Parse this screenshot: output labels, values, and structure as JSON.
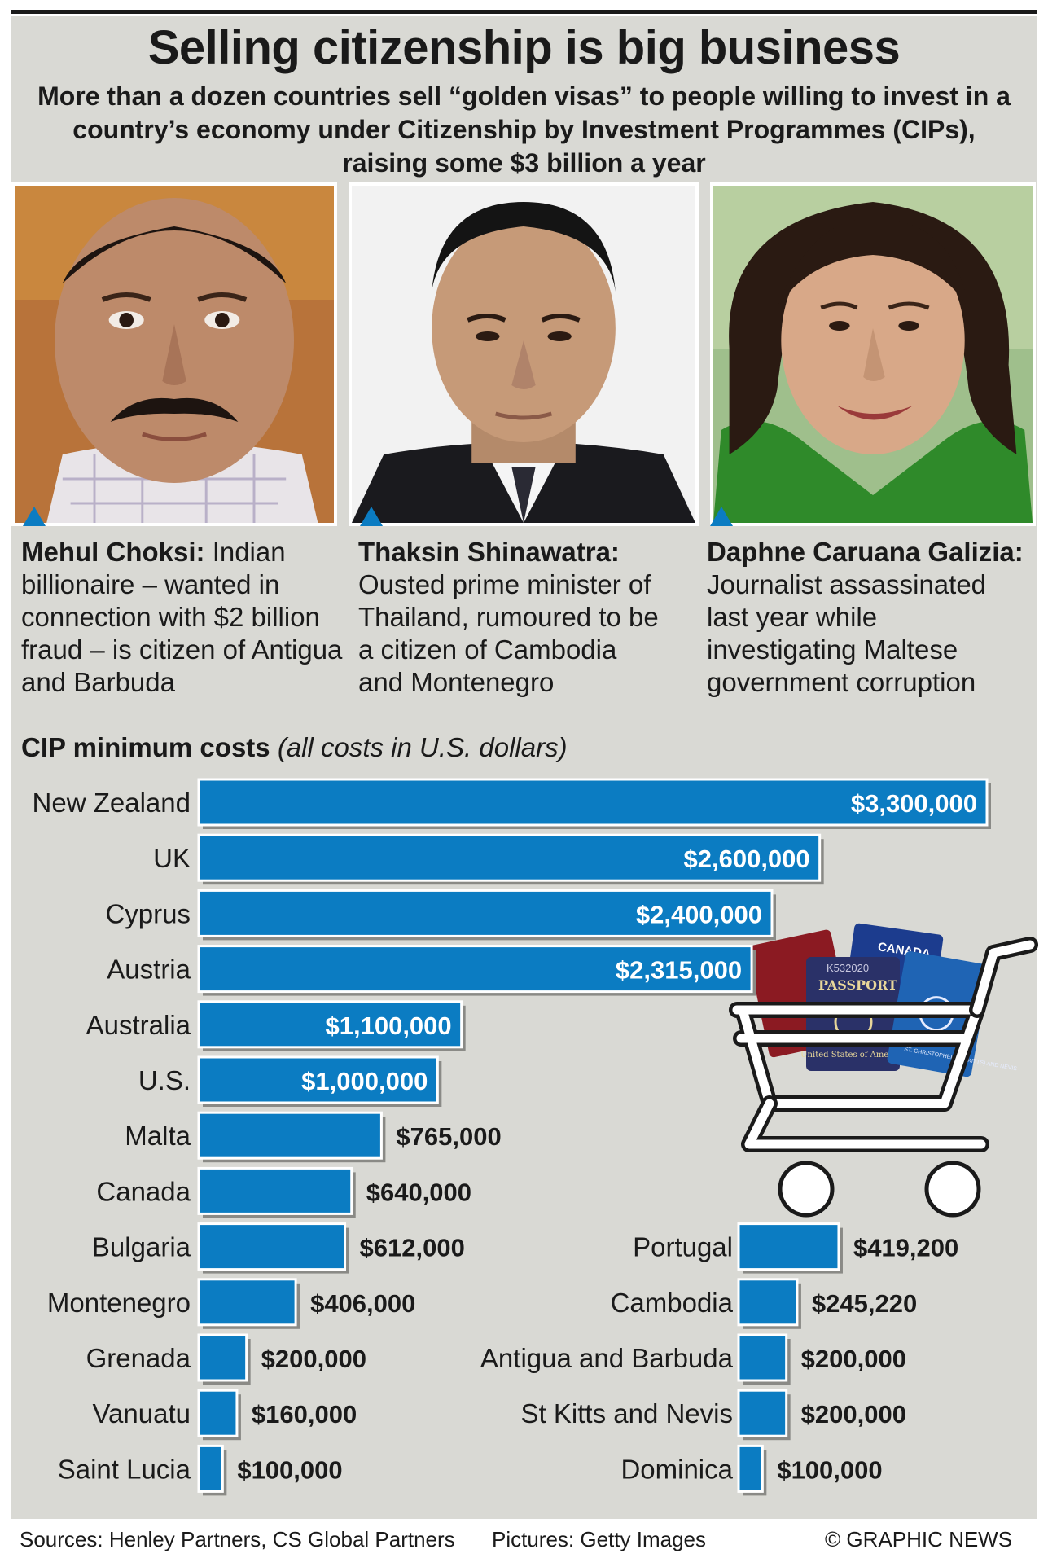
{
  "title": "Selling citizenship is big business",
  "subtitle": "More than a dozen countries sell “golden visas” to people willing to invest in a country’s economy under Citizenship by Investment Programmes (CIPs), raising some $3 billion a year",
  "profiles": [
    {
      "name": "Mehul Choksi:",
      "text": "Indian billionaire – wanted in connection with $2 billion fraud – is citizen of Antigua and Barbuda"
    },
    {
      "name": "Thaksin Shinawatra:",
      "text": "Ousted prime minister of Thailand, rumoured to be a citizen of Cambodia and Montenegro"
    },
    {
      "name": "Daphne Caruana Galizia:",
      "text": "Journalist assassinated last year while investigating Maltese government corruption"
    }
  ],
  "section": {
    "heading": "CIP minimum costs",
    "note": "(all costs in U.S. dollars)"
  },
  "passports": {
    "front_title": "PASSPORT",
    "front_country": "United States of America",
    "back_right": "CANADA",
    "serial": "K532020",
    "stkitts": "ST. CHRISTOPHER (ST. KITTS) AND NEVIS"
  },
  "colors": {
    "bar": "#0b7cc2",
    "panel": "#d9d9d4",
    "text": "#1a1a1a"
  },
  "chart_data": {
    "type": "bar",
    "orientation": "horizontal",
    "series": [
      {
        "categories": [
          "New Zealand",
          "UK",
          "Cyprus",
          "Austria",
          "Australia",
          "U.S.",
          "Malta",
          "Canada",
          "Bulgaria",
          "Montenegro",
          "Grenada",
          "Vanuatu",
          "Saint Lucia"
        ],
        "values": [
          3300000,
          2600000,
          2400000,
          2315000,
          1100000,
          1000000,
          765000,
          640000,
          612000,
          406000,
          200000,
          160000,
          100000
        ],
        "labels": [
          "$3,300,000",
          "$2,600,000",
          "$2,400,000",
          "$2,315,000",
          "$1,100,000",
          "$1,000,000",
          "$765,000",
          "$640,000",
          "$612,000",
          "$406,000",
          "$200,000",
          "$160,000",
          "$100,000"
        ]
      },
      {
        "categories": [
          "Portugal",
          "Cambodia",
          "Antigua and Barbuda",
          "St Kitts and Nevis",
          "Dominica"
        ],
        "values": [
          419200,
          245220,
          200000,
          200000,
          100000
        ],
        "labels": [
          "$419,200",
          "$245,220",
          "$200,000",
          "$200,000",
          "$100,000"
        ]
      }
    ]
  },
  "footer": {
    "sources": "Sources: Henley Partners, CS Global Partners",
    "pictures": "Pictures: Getty Images",
    "credit": "© GRAPHIC NEWS"
  }
}
